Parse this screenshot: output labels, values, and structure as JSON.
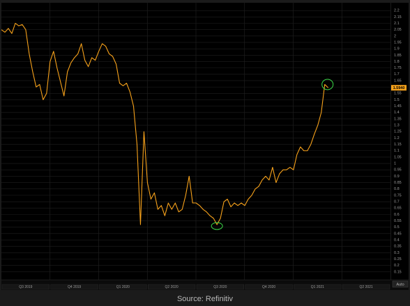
{
  "chart_data": {
    "type": "line",
    "values": [
      2.05,
      2.03,
      2.06,
      2.02,
      2.1,
      2.08,
      2.09,
      2.05,
      1.86,
      1.72,
      1.6,
      1.62,
      1.5,
      1.55,
      1.8,
      1.88,
      1.75,
      1.64,
      1.53,
      1.72,
      1.79,
      1.83,
      1.86,
      1.94,
      1.81,
      1.76,
      1.83,
      1.81,
      1.88,
      1.94,
      1.92,
      1.86,
      1.84,
      1.78,
      1.63,
      1.61,
      1.63,
      1.56,
      1.45,
      1.15,
      0.52,
      1.25,
      0.85,
      0.72,
      0.77,
      0.64,
      0.67,
      0.59,
      0.69,
      0.64,
      0.69,
      0.62,
      0.64,
      0.75,
      0.9,
      0.69,
      0.69,
      0.67,
      0.64,
      0.62,
      0.59,
      0.57,
      0.52,
      0.57,
      0.7,
      0.72,
      0.66,
      0.69,
      0.67,
      0.69,
      0.67,
      0.72,
      0.75,
      0.8,
      0.82,
      0.87,
      0.9,
      0.87,
      0.97,
      0.85,
      0.92,
      0.95,
      0.95,
      0.97,
      0.95,
      1.07,
      1.13,
      1.1,
      1.1,
      1.15,
      1.23,
      1.3,
      1.4,
      1.62,
      1.594
    ],
    "last_value_label": "1.5940",
    "color": "#f7a21b",
    "highlight_color": "#3ddc4a",
    "ylim": [
      0.1,
      2.25
    ],
    "yticks": [
      0.15,
      0.2,
      0.25,
      0.3,
      0.35,
      0.4,
      0.45,
      0.5,
      0.55,
      0.6,
      0.65,
      0.7,
      0.75,
      0.8,
      0.85,
      0.9,
      0.95,
      1,
      1.05,
      1.1,
      1.15,
      1.2,
      1.25,
      1.3,
      1.35,
      1.4,
      1.45,
      1.5,
      1.55,
      1.6,
      1.65,
      1.7,
      1.75,
      1.8,
      1.85,
      1.9,
      1.95,
      2,
      2.05,
      2.1,
      2.15,
      2.2
    ],
    "grid": true,
    "quarters": [
      "Q3 2019",
      "Q4 2019",
      "Q1 2020",
      "Q2 2020",
      "Q3 2020",
      "Q4 2020",
      "Q1 2021",
      "Q2 2021"
    ],
    "auto_button": "Auto",
    "source": "Source: Refinitiv"
  }
}
